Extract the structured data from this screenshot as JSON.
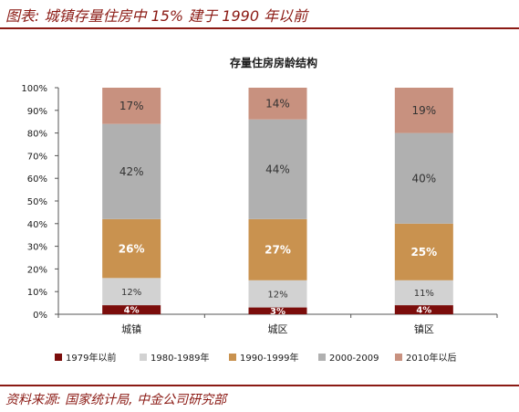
{
  "header": {
    "figure_title": "图表: 城镇存量住房中 15% 建于 1990 年以前"
  },
  "footer": {
    "source": "资料来源: 国家统计局, 中金公司研究部"
  },
  "chart_data": {
    "type": "bar",
    "stacked": true,
    "title": "存量住房房龄结构",
    "categories": [
      "城镇",
      "城区",
      "镇区"
    ],
    "series": [
      {
        "name": "1979年以前",
        "values": [
          4,
          3,
          4
        ],
        "labels": [
          "4%",
          "3%",
          "4%"
        ],
        "color": "#7b0d0b"
      },
      {
        "name": "1980-1989年",
        "values": [
          12,
          12,
          11
        ],
        "labels": [
          "12%",
          "12%",
          "11%"
        ],
        "color": "#d2d2d2"
      },
      {
        "name": "1990-1999年",
        "values": [
          26,
          27,
          25
        ],
        "labels": [
          "26%",
          "27%",
          "25%"
        ],
        "color": "#c9924f"
      },
      {
        "name": "2000-2009",
        "values": [
          42,
          44,
          40
        ],
        "labels": [
          "42%",
          "44%",
          "40%"
        ],
        "color": "#b0b0b0"
      },
      {
        "name": "2010年以后",
        "values": [
          17,
          14,
          19
        ],
        "labels": [
          "17%",
          "14%",
          "19%"
        ],
        "color": "#c8917f"
      }
    ],
    "label_colors": [
      "#ffffff",
      "#333333",
      "#ffffff",
      "#333333",
      "#333333"
    ],
    "ylim": [
      0,
      100
    ],
    "yticks": [
      "0%",
      "10%",
      "20%",
      "30%",
      "40%",
      "50%",
      "60%",
      "70%",
      "80%",
      "90%",
      "100%"
    ],
    "grid": false,
    "legend_position": "bottom"
  }
}
